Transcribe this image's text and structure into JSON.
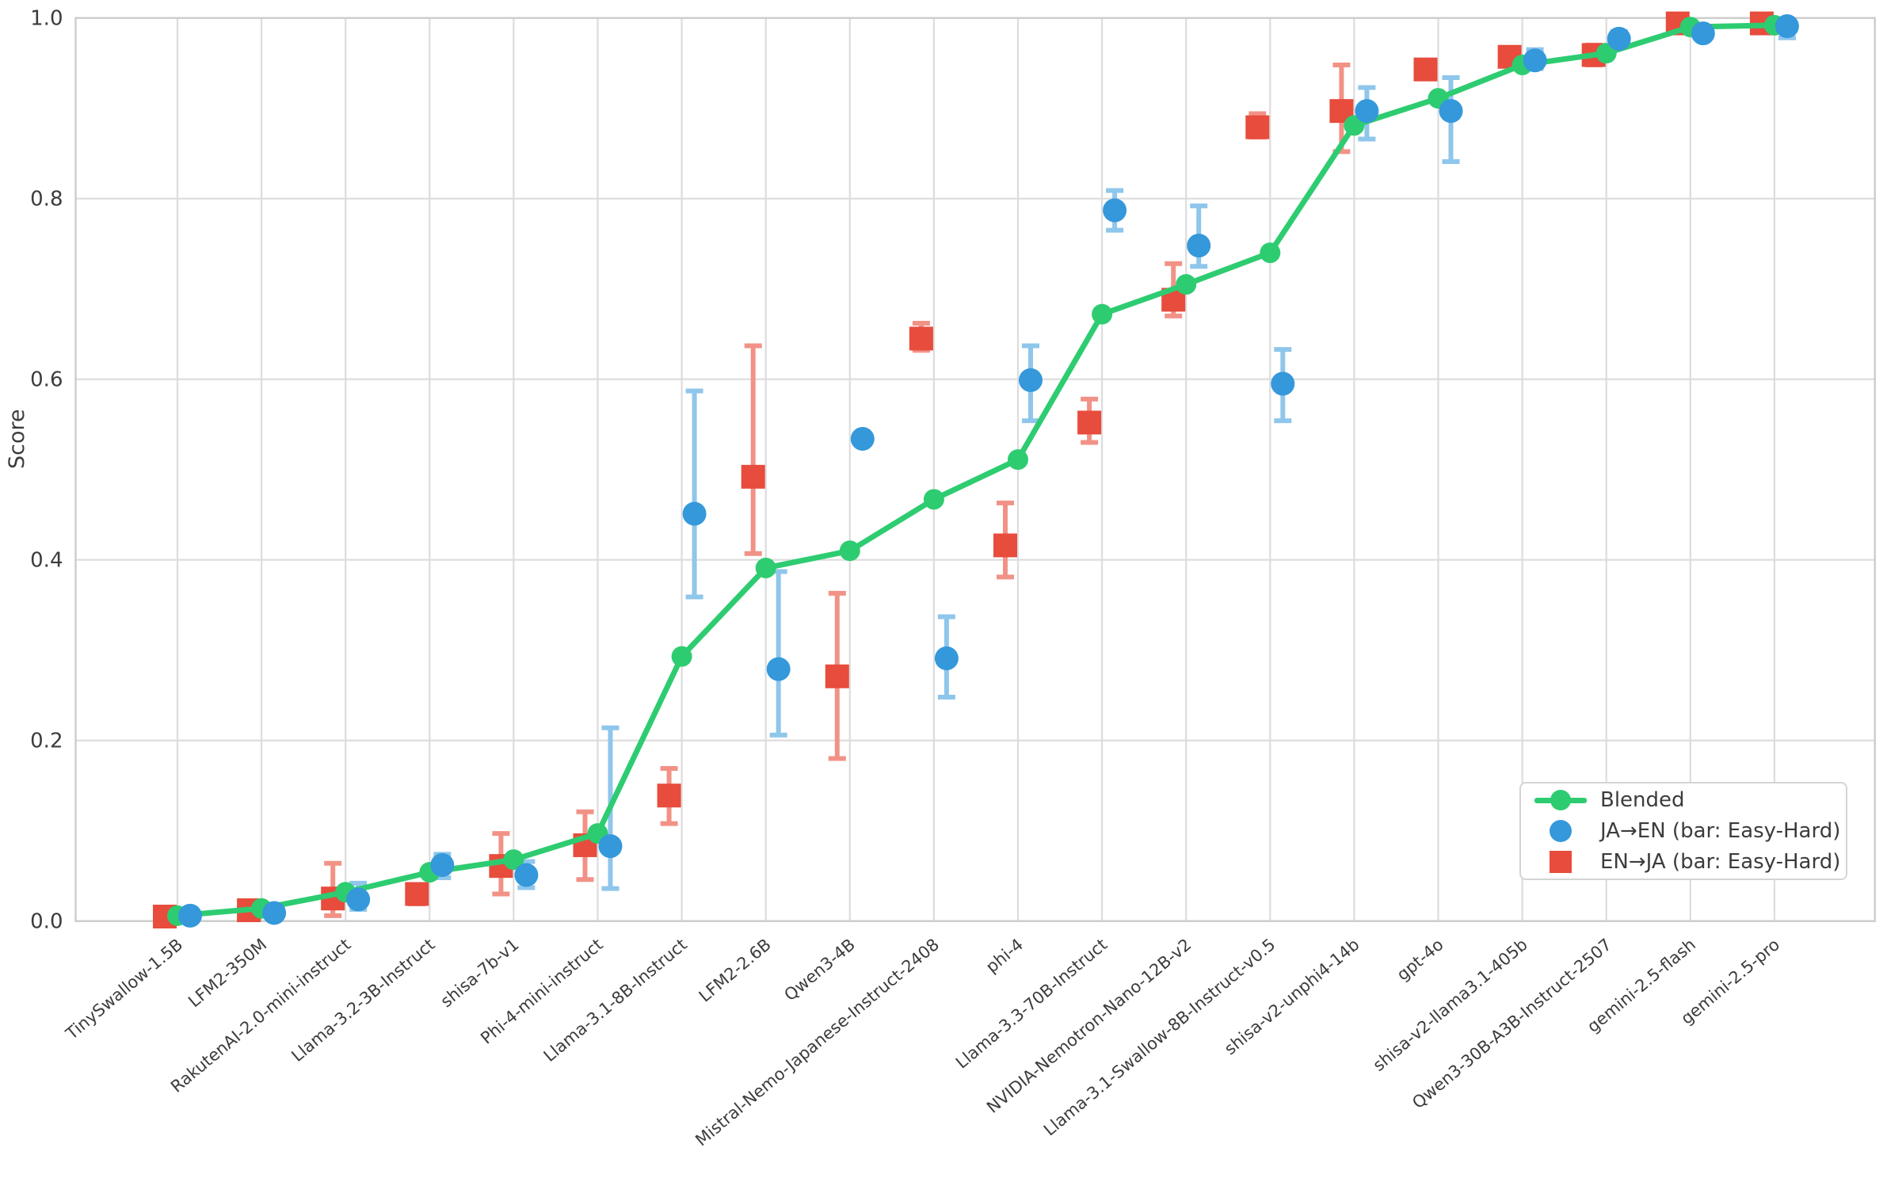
{
  "figure": {
    "ylabel": "Score"
  },
  "legend": {
    "items": [
      {
        "label": "Blended",
        "marker": "line-dot",
        "color": "#2ecc71"
      },
      {
        "label": "JA→EN (bar: Easy-Hard)",
        "marker": "circle",
        "color": "#3498db"
      },
      {
        "label": "EN→JA (bar: Easy-Hard)",
        "marker": "square",
        "color": "#e74c3c"
      }
    ]
  },
  "chart_data": {
    "type": "line",
    "title": "",
    "xlabel": "",
    "ylabel": "Score",
    "ylim": [
      0.0,
      1.0
    ],
    "yticks": [
      0.0,
      0.2,
      0.4,
      0.6,
      0.8,
      1.0
    ],
    "grid": true,
    "legend_position": "lower right",
    "categories": [
      "TinySwallow-1.5B",
      "LFM2-350M",
      "RakutenAI-2.0-mini-instruct",
      "Llama-3.2-3B-Instruct",
      "shisa-7b-v1",
      "Phi-4-mini-instruct",
      "Llama-3.1-8B-Instruct",
      "LFM2-2.6B",
      "Qwen3-4B",
      "Mistral-Nemo-Japanese-Instruct-2408",
      "phi-4",
      "Llama-3.3-70B-Instruct",
      "NVIDIA-Nemotron-Nano-12B-v2",
      "Llama-3.1-Swallow-8B-Instruct-v0.5",
      "shisa-v2-unphi4-14b",
      "gpt-4o",
      "shisa-v2-llama3.1-405b",
      "Qwen3-30B-A3B-Instruct-2507",
      "gemini-2.5-flash",
      "gemini-2.5-pro"
    ],
    "series": [
      {
        "name": "Blended",
        "style": "line-dot",
        "color": "#2ecc71",
        "values": [
          0.006,
          0.014,
          0.032,
          0.054,
          0.068,
          0.097,
          0.293,
          0.391,
          0.41,
          0.467,
          0.511,
          0.672,
          0.705,
          0.74,
          0.881,
          0.911,
          0.948,
          0.961,
          0.99,
          0.992
        ]
      },
      {
        "name": "JA→EN (bar: Easy-Hard)",
        "style": "circle",
        "color": "#3498db",
        "errbar_color": "#8FC6EB",
        "values": [
          0.006,
          0.009,
          0.024,
          0.062,
          0.051,
          0.083,
          0.451,
          0.279,
          0.534,
          0.291,
          0.599,
          0.787,
          0.748,
          0.595,
          0.897,
          0.897,
          0.953,
          0.977,
          0.983,
          0.991
        ],
        "err_lo": [
          null,
          null,
          0.013,
          0.048,
          0.037,
          0.036,
          0.359,
          0.206,
          null,
          0.248,
          0.554,
          0.765,
          0.725,
          0.554,
          0.866,
          0.841,
          0.944,
          0.97,
          null,
          0.978
        ],
        "err_hi": [
          null,
          null,
          0.042,
          0.074,
          0.066,
          0.214,
          0.587,
          0.387,
          null,
          0.337,
          0.637,
          0.809,
          0.792,
          0.633,
          0.923,
          0.934,
          0.965,
          0.985,
          null,
          0.995
        ]
      },
      {
        "name": "EN→JA (bar: Easy-Hard)",
        "style": "square",
        "color": "#e74c3c",
        "errbar_color": "#F29287",
        "values": [
          0.005,
          0.012,
          0.025,
          0.03,
          0.061,
          0.084,
          0.139,
          0.492,
          0.271,
          0.645,
          0.416,
          0.552,
          0.688,
          0.879,
          0.897,
          0.943,
          0.957,
          0.959,
          0.994,
          0.994
        ],
        "err_lo": [
          null,
          null,
          0.006,
          0.019,
          0.03,
          0.046,
          0.108,
          0.407,
          0.18,
          0.632,
          0.381,
          0.53,
          0.67,
          0.868,
          0.852,
          null,
          null,
          0.948,
          null,
          null
        ],
        "err_hi": [
          null,
          null,
          0.064,
          0.04,
          0.097,
          0.121,
          0.169,
          0.637,
          0.363,
          0.662,
          0.463,
          0.578,
          0.728,
          0.894,
          0.948,
          null,
          null,
          0.97,
          null,
          null
        ]
      }
    ]
  }
}
